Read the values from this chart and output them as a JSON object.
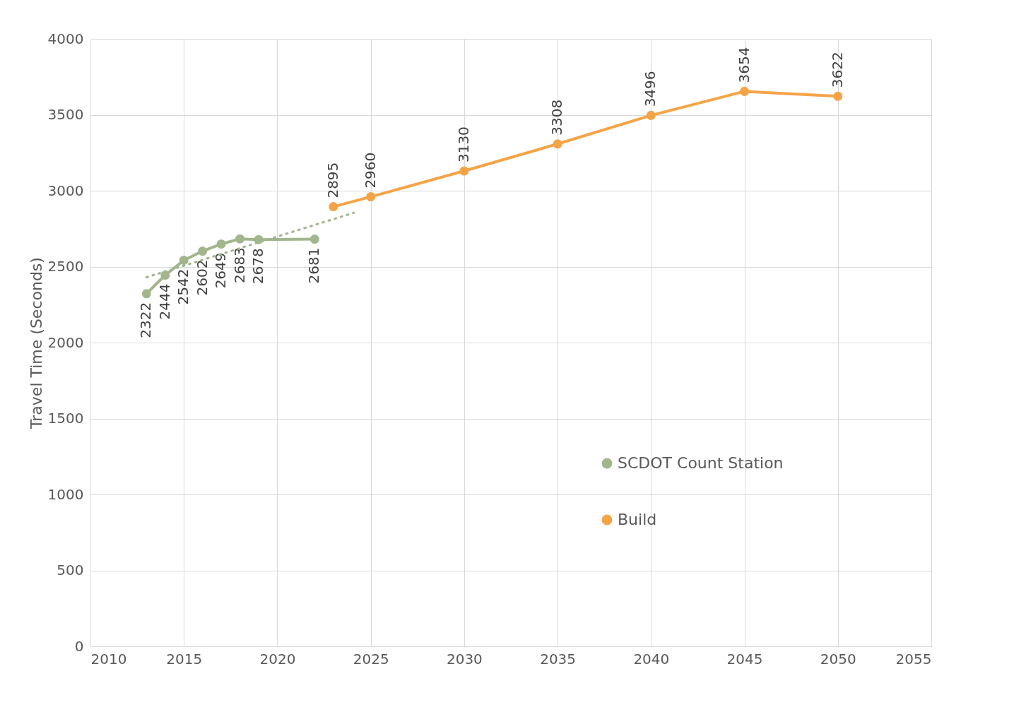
{
  "chart_data": {
    "type": "line",
    "ylabel": "Travel Time (Seconds)",
    "xlim": [
      2010,
      2055
    ],
    "xticks": [
      2010,
      2015,
      2020,
      2025,
      2030,
      2035,
      2040,
      2045,
      2050,
      2055
    ],
    "ylim": [
      0,
      4000
    ],
    "yticks": [
      0,
      500,
      1000,
      1500,
      2000,
      2500,
      3000,
      3500,
      4000
    ],
    "grid": true,
    "legend": "right",
    "marker": "circle",
    "line_style": "solid",
    "series": [
      {
        "name": "SCDOT Count Station",
        "color": "#a2b58d",
        "x": [
          2013,
          2014,
          2015,
          2016,
          2017,
          2018,
          2019,
          2022
        ],
        "values": [
          2322,
          2444,
          2542,
          2602,
          2649,
          2683,
          2678,
          2681
        ],
        "value_labels": [
          "2322",
          "2444",
          "2542",
          "2602",
          "2649",
          "2683",
          "2678",
          "2681"
        ]
      },
      {
        "name": "Build",
        "color": "#f4a447",
        "x": [
          2023,
          2025,
          2030,
          2035,
          2040,
          2045,
          2050
        ],
        "values": [
          2895,
          2960,
          3130,
          3308,
          3496,
          3654,
          3622
        ],
        "value_labels": [
          "2895",
          "2960",
          "3130",
          "3308",
          "3496",
          "3654",
          "3622"
        ]
      },
      {
        "type": "line",
        "color": "#a2b58d",
        "marker": "none",
        "line_style": "dotted",
        "x": [
          2013,
          2024.1
        ],
        "values": [
          2430,
          2855
        ]
      }
    ]
  }
}
